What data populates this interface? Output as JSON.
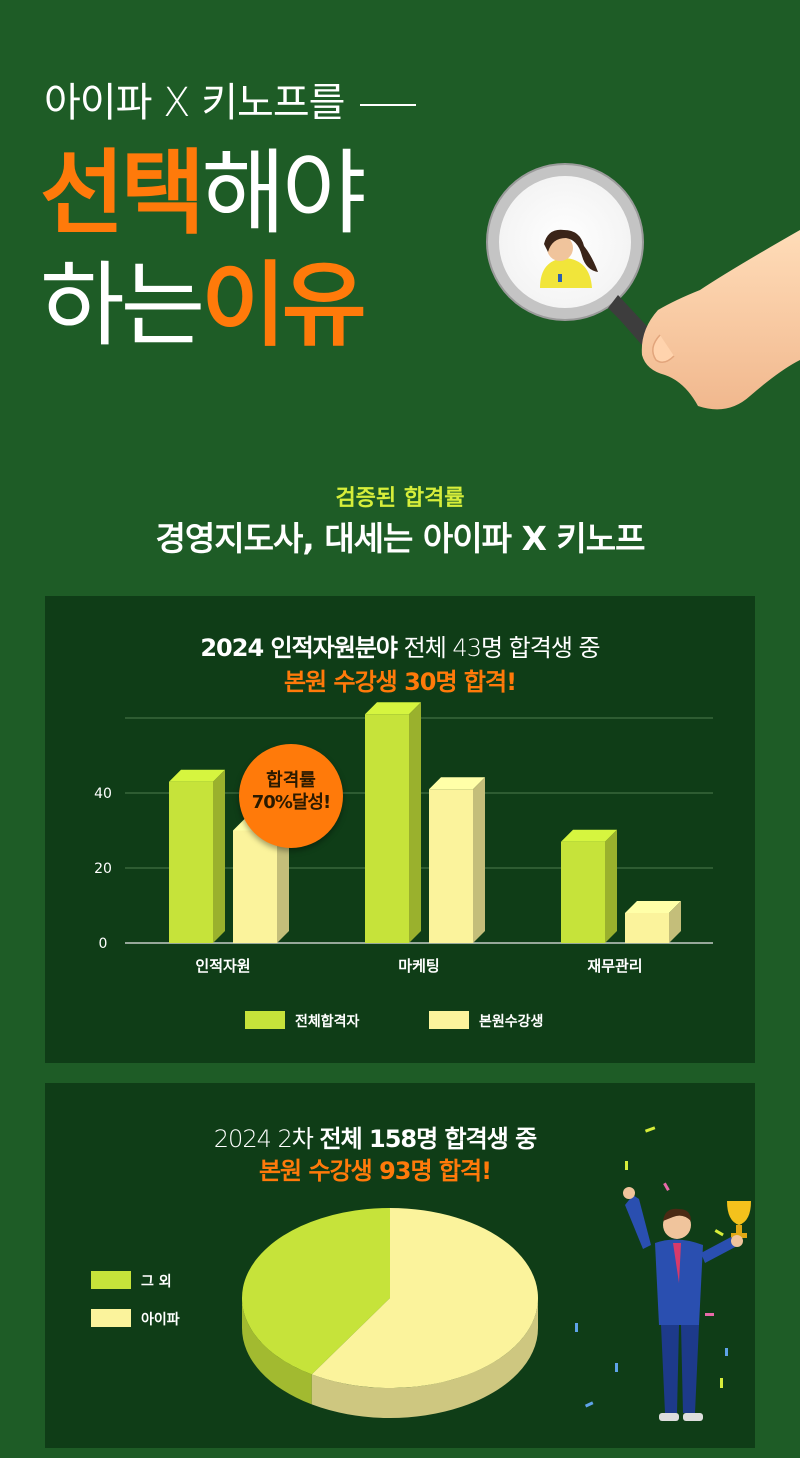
{
  "hero": {
    "line1": "아이파 X 키노프를",
    "line2_highlight": "선택",
    "line2_rest": "해야",
    "line3_rest": "하는",
    "line3_highlight": "이유"
  },
  "section": {
    "subtitle": "검증된 합격률",
    "title": "경영지도사, 대세는 아이파 X 키노프"
  },
  "panel1": {
    "title_bold": "2024 인적자원분야",
    "title_thin": "전체 43명 합격생 중",
    "subtitle": "본원 수강생 30명 합격!",
    "badge_line1": "합격률",
    "badge_line2": "70%달성!"
  },
  "panel2": {
    "title_thin": "2024 2차",
    "title_bold": "전체 158명 합격생 중",
    "subtitle": "본원 수강생 93명 합격!"
  },
  "colors": {
    "background": "#1e5c26",
    "panel": "#0f3d17",
    "accent_orange": "#ff7a0a",
    "lime": "#c6e33a",
    "pale_yellow": "#fbf39c"
  },
  "chart_data": [
    {
      "type": "bar",
      "categories": [
        "인적자원",
        "마케팅",
        "재무관리"
      ],
      "series": [
        {
          "name": "전체합격자",
          "values": [
            43,
            61,
            27
          ],
          "color": "#c6e33a"
        },
        {
          "name": "본원수강생",
          "values": [
            30,
            41,
            8
          ],
          "color": "#fbf39c"
        }
      ],
      "yticks": [
        0,
        20,
        40
      ],
      "ylim": [
        0,
        60
      ],
      "grid": true,
      "legend": "bottom"
    },
    {
      "type": "pie",
      "slices": [
        {
          "name": "그 외",
          "value": 65,
          "color": "#c6e33a"
        },
        {
          "name": "아이파",
          "value": 93,
          "color": "#fbf39c"
        }
      ],
      "legend": "left"
    }
  ]
}
